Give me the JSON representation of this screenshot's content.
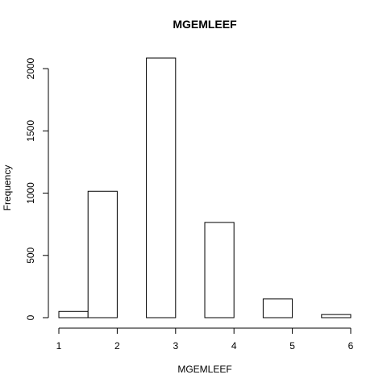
{
  "chart_data": {
    "type": "bar",
    "title": "MGEMLEEF",
    "xlabel": "MGEMLEEF",
    "ylabel": "Frequency",
    "bins": [
      {
        "start": 1.0,
        "end": 1.5,
        "count": 50
      },
      {
        "start": 1.5,
        "end": 2.0,
        "count": 1015
      },
      {
        "start": 2.0,
        "end": 2.5,
        "count": 0
      },
      {
        "start": 2.5,
        "end": 3.0,
        "count": 2085
      },
      {
        "start": 3.0,
        "end": 3.5,
        "count": 0
      },
      {
        "start": 3.5,
        "end": 4.0,
        "count": 765
      },
      {
        "start": 4.0,
        "end": 4.5,
        "count": 0
      },
      {
        "start": 4.5,
        "end": 5.0,
        "count": 150
      },
      {
        "start": 5.0,
        "end": 5.5,
        "count": 0
      },
      {
        "start": 5.5,
        "end": 6.0,
        "count": 25
      }
    ],
    "xlim": [
      1,
      6
    ],
    "ylim": [
      0,
      2085
    ],
    "xticks": [
      "1",
      "2",
      "3",
      "4",
      "5",
      "6"
    ],
    "yticks": [
      "0",
      "500",
      "1000",
      "1500",
      "2000"
    ],
    "grid": false
  }
}
